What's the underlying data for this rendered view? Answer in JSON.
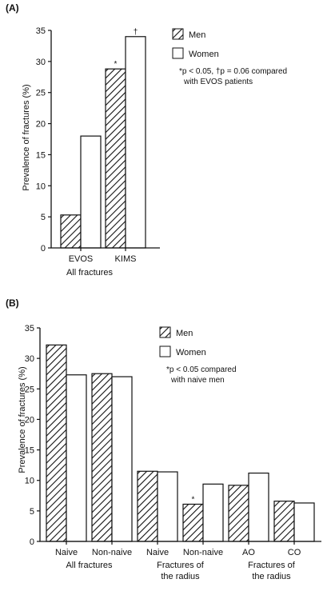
{
  "chart_data": [
    {
      "panel": "(A)",
      "type": "bar",
      "ylabel": "Prevalence of fractures (%)",
      "xlabel": "All fractures",
      "ylim": [
        0,
        35
      ],
      "yticks": [
        "0",
        "5",
        "10",
        "15",
        "20",
        "25",
        "30",
        "35"
      ],
      "categories": [
        "EVOS",
        "KIMS"
      ],
      "series": [
        {
          "name": "Men",
          "values": [
            5.3,
            28.8
          ],
          "fill": "hatch"
        },
        {
          "name": "Women",
          "values": [
            18.0,
            34.0
          ],
          "fill": "white"
        }
      ],
      "markers": [
        {
          "category": 1,
          "series": 0,
          "text": "*"
        },
        {
          "category": 1,
          "series": 1,
          "text": "†"
        }
      ],
      "legend": {
        "placement": "top-right",
        "men": "Men",
        "women": "Women"
      },
      "note_line1": "*p < 0.05, †p = 0.06 compared",
      "note_line2": "with EVOS patients"
    },
    {
      "panel": "(B)",
      "type": "bar",
      "ylabel": "Prevalence of fractures (%)",
      "ylim": [
        0,
        35
      ],
      "yticks": [
        "0",
        "5",
        "10",
        "15",
        "20",
        "25",
        "30",
        "35"
      ],
      "categories": [
        "Naive",
        "Non-naive",
        "Naive",
        "Non-naive",
        "AO",
        "CO"
      ],
      "groups": [
        {
          "line1": "All fractures",
          "line2": ""
        },
        {
          "line1": "Fractures of",
          "line2": "the radius"
        },
        {
          "line1": "Fractures of",
          "line2": "the radius"
        }
      ],
      "series": [
        {
          "name": "Men",
          "values": [
            32.2,
            27.5,
            11.5,
            6.1,
            9.2,
            6.6
          ],
          "fill": "hatch"
        },
        {
          "name": "Women",
          "values": [
            27.3,
            27.0,
            11.4,
            9.4,
            11.2,
            6.3
          ],
          "fill": "white"
        }
      ],
      "markers": [
        {
          "category": 3,
          "series": 0,
          "text": "*"
        }
      ],
      "legend": {
        "placement": "top-right",
        "men": "Men",
        "women": "Women"
      },
      "note_line1": "*p < 0.05 compared",
      "note_line2": "with naive men"
    }
  ]
}
